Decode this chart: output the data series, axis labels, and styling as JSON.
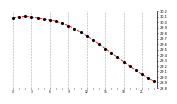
{
  "hours": [
    0,
    1,
    2,
    3,
    4,
    5,
    6,
    7,
    8,
    9,
    10,
    11,
    12,
    13,
    14,
    15,
    16,
    17,
    18,
    19,
    20,
    21,
    22,
    23
  ],
  "pressure": [
    30.08,
    30.1,
    30.11,
    30.09,
    30.08,
    30.06,
    30.04,
    30.02,
    29.98,
    29.94,
    29.88,
    29.82,
    29.75,
    29.68,
    29.6,
    29.52,
    29.44,
    29.36,
    29.28,
    29.2,
    29.12,
    29.05,
    28.98,
    28.92
  ],
  "ylim": [
    28.8,
    30.2
  ],
  "yticks": [
    28.8,
    28.9,
    29.0,
    29.1,
    29.2,
    29.3,
    29.4,
    29.5,
    29.6,
    29.7,
    29.8,
    29.9,
    30.0,
    30.1,
    30.2
  ],
  "ytick_labels": [
    "28.8",
    "28.9",
    "29.0",
    "29.1",
    "29.2",
    "29.3",
    "29.4",
    "29.5",
    "29.6",
    "29.7",
    "29.8",
    "29.9",
    "30.0",
    "30.1",
    "30.2"
  ],
  "line_color": "#ff0000",
  "marker_color": "#000000",
  "grid_color": "#aaaaaa",
  "bg_color": "#ffffff",
  "xtick_interval": 3
}
